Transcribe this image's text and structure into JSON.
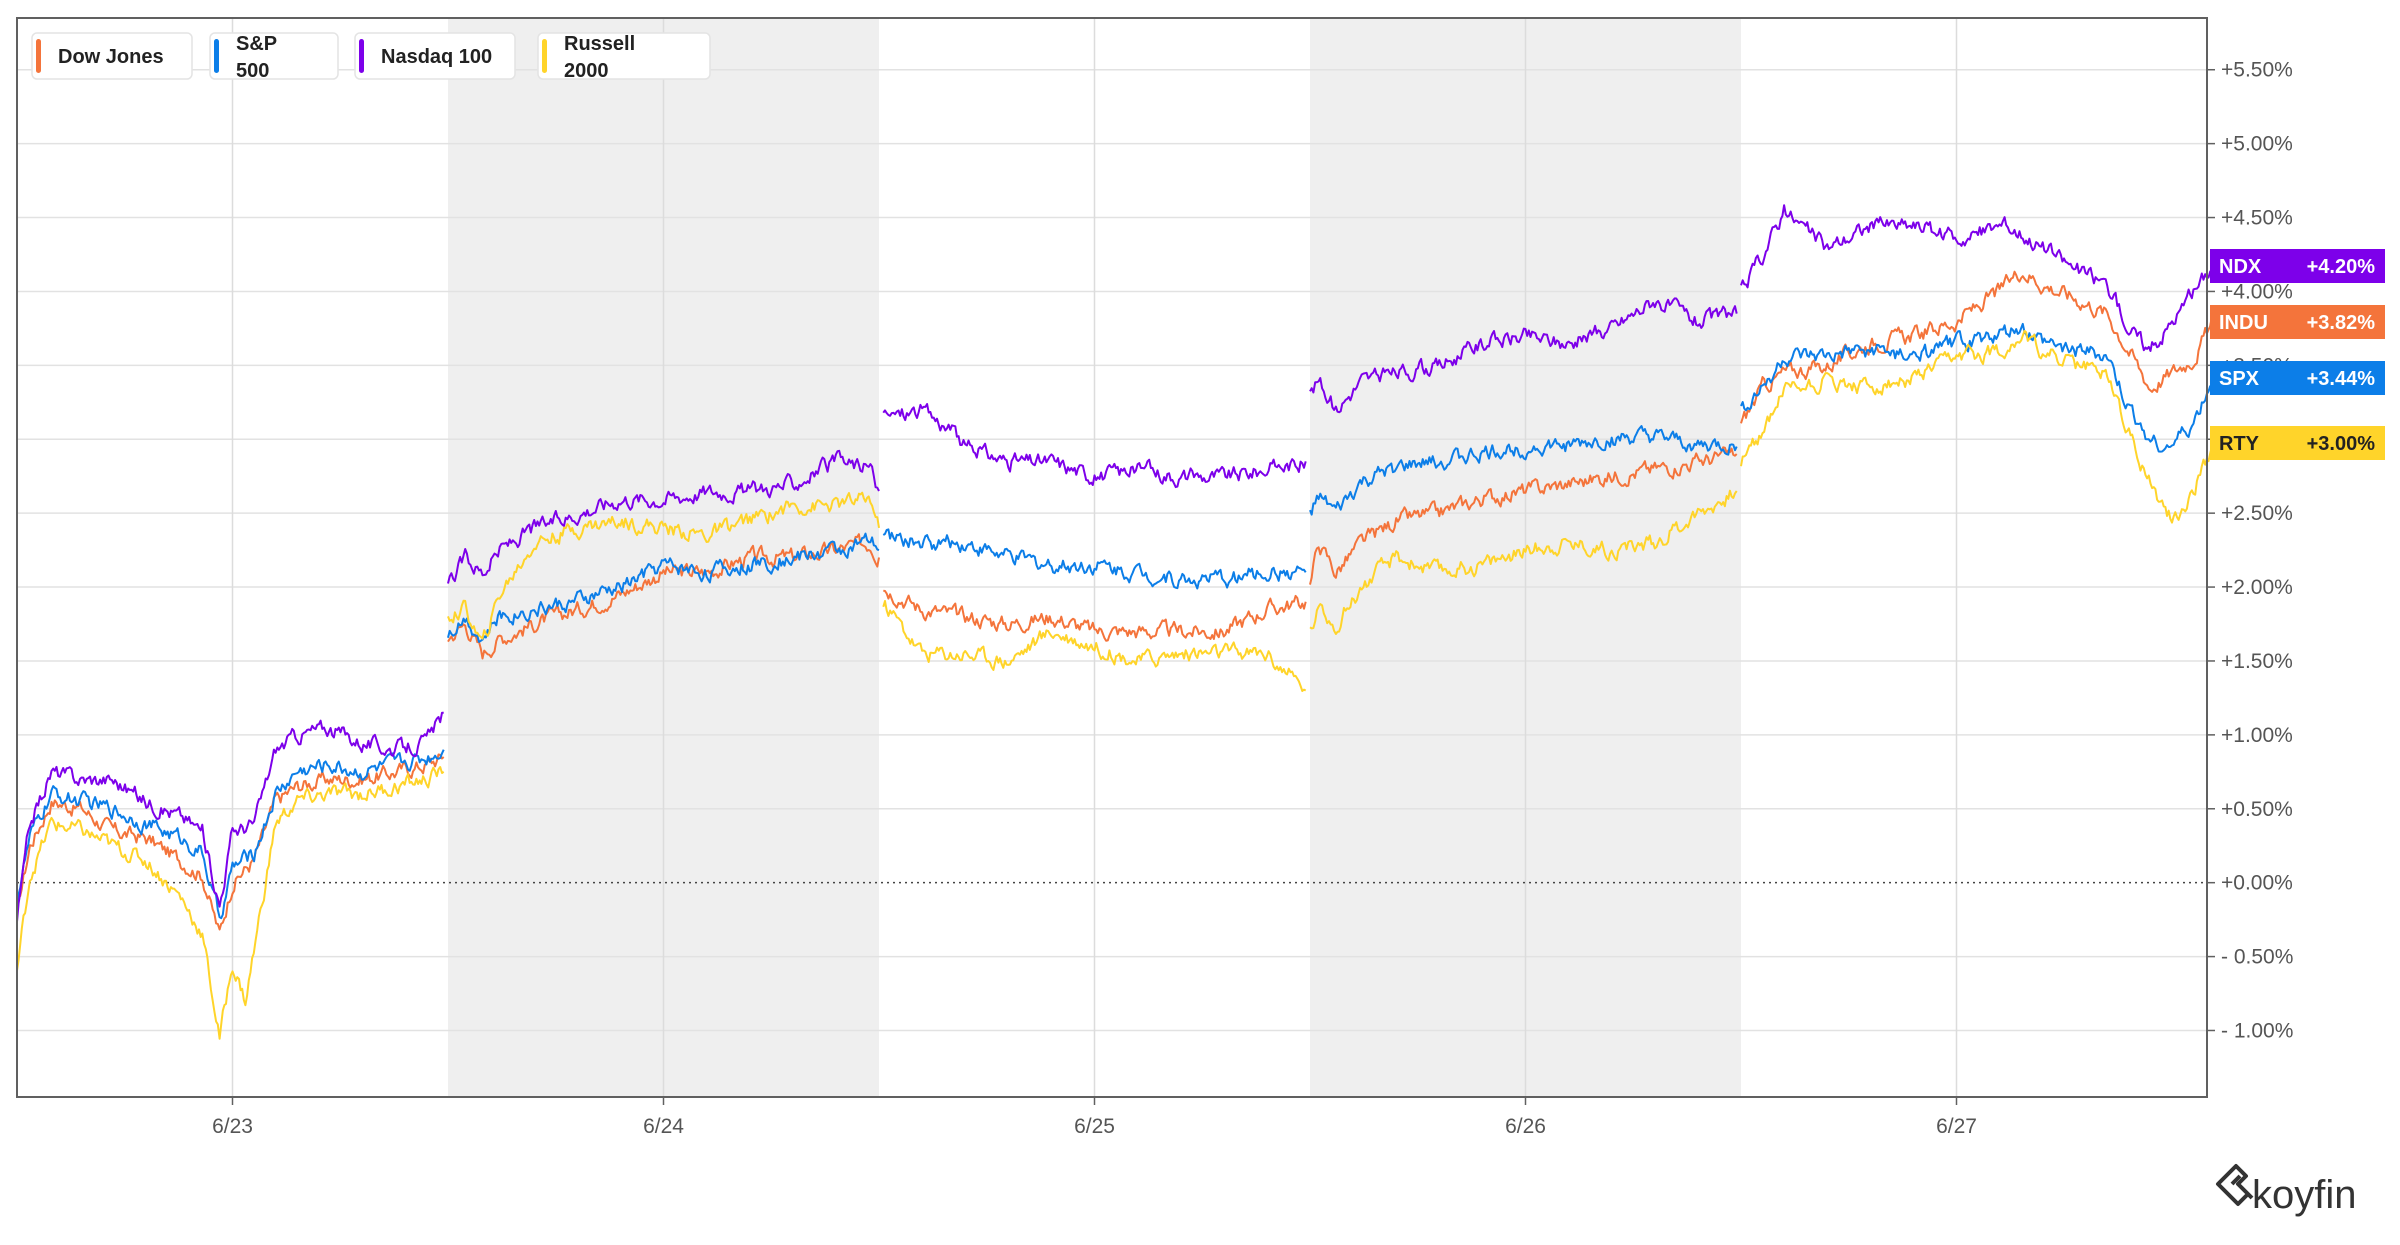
{
  "chart_data": {
    "type": "line",
    "title": "",
    "x_ticks": [
      "6/23",
      "6/24",
      "6/25",
      "6/26",
      "6/27"
    ],
    "y_ticks": [
      "+5.50%",
      "+5.00%",
      "+4.50%",
      "+4.00%",
      "+3.50%",
      "+3.00%",
      "+2.50%",
      "+2.00%",
      "+1.50%",
      "+1.00%",
      "+0.50%",
      "+0.00%",
      "- 0.50%",
      "- 1.00%"
    ],
    "y_tick_values": [
      5.5,
      5.0,
      4.5,
      4.0,
      3.5,
      3.0,
      2.5,
      2.0,
      1.5,
      1.0,
      0.5,
      0.0,
      -0.5,
      -1.0
    ],
    "ylim": [
      -1.45,
      5.85
    ],
    "xlim": [
      0,
      5.1
    ],
    "grid": true,
    "zero_line": "dotted",
    "shaded_days": [
      [
        1.0,
        2.0
      ],
      [
        3.0,
        4.0
      ]
    ],
    "legend_position": "top-left",
    "series": [
      {
        "name": "Dow Jones",
        "ticker": "INDU",
        "last_label": "+3.82%",
        "color": "#f4743b",
        "last": 3.82,
        "points": [
          [
            0.0,
            -0.2
          ],
          [
            0.03,
            0.25
          ],
          [
            0.08,
            0.55
          ],
          [
            0.15,
            0.5
          ],
          [
            0.22,
            0.35
          ],
          [
            0.3,
            0.3
          ],
          [
            0.38,
            0.15
          ],
          [
            0.43,
            0.05
          ],
          [
            0.47,
            -0.35
          ],
          [
            0.5,
            0.0
          ],
          [
            0.55,
            0.15
          ],
          [
            0.6,
            0.55
          ],
          [
            0.65,
            0.65
          ],
          [
            0.72,
            0.7
          ],
          [
            0.8,
            0.7
          ],
          [
            0.88,
            0.75
          ],
          [
            0.95,
            0.8
          ],
          [
            0.99,
            0.85
          ],
          [
            1.0,
            1.65
          ],
          [
            1.04,
            1.75
          ],
          [
            1.08,
            1.55
          ],
          [
            1.12,
            1.65
          ],
          [
            1.2,
            1.75
          ],
          [
            1.3,
            1.85
          ],
          [
            1.4,
            1.95
          ],
          [
            1.5,
            2.1
          ],
          [
            1.6,
            2.1
          ],
          [
            1.7,
            2.2
          ],
          [
            1.8,
            2.2
          ],
          [
            1.9,
            2.25
          ],
          [
            1.98,
            2.3
          ],
          [
            2.0,
            2.2
          ],
          [
            2.01,
            2.0
          ],
          [
            2.1,
            1.85
          ],
          [
            2.2,
            1.8
          ],
          [
            2.3,
            1.75
          ],
          [
            2.4,
            1.8
          ],
          [
            2.5,
            1.7
          ],
          [
            2.6,
            1.7
          ],
          [
            2.7,
            1.7
          ],
          [
            2.8,
            1.7
          ],
          [
            2.9,
            1.85
          ],
          [
            2.99,
            1.9
          ],
          [
            3.0,
            2.0
          ],
          [
            3.02,
            2.3
          ],
          [
            3.06,
            2.1
          ],
          [
            3.12,
            2.3
          ],
          [
            3.2,
            2.45
          ],
          [
            3.3,
            2.5
          ],
          [
            3.4,
            2.6
          ],
          [
            3.5,
            2.65
          ],
          [
            3.6,
            2.7
          ],
          [
            3.7,
            2.75
          ],
          [
            3.8,
            2.8
          ],
          [
            3.9,
            2.85
          ],
          [
            3.99,
            2.9
          ],
          [
            4.0,
            3.1
          ],
          [
            4.05,
            3.35
          ],
          [
            4.1,
            3.45
          ],
          [
            4.2,
            3.5
          ],
          [
            4.3,
            3.65
          ],
          [
            4.4,
            3.7
          ],
          [
            4.5,
            3.8
          ],
          [
            4.6,
            4.0
          ],
          [
            4.65,
            4.15
          ],
          [
            4.7,
            4.05
          ],
          [
            4.78,
            3.95
          ],
          [
            4.85,
            3.85
          ],
          [
            4.9,
            3.6
          ],
          [
            4.95,
            3.35
          ],
          [
            5.0,
            3.45
          ],
          [
            5.05,
            3.55
          ],
          [
            5.1,
            3.82
          ]
        ]
      },
      {
        "name": "S&P 500",
        "ticker": "SPX",
        "last_label": "+3.44%",
        "color": "#0c7ee8",
        "last": 3.44,
        "points": [
          [
            0.0,
            -0.1
          ],
          [
            0.03,
            0.3
          ],
          [
            0.08,
            0.6
          ],
          [
            0.15,
            0.55
          ],
          [
            0.22,
            0.5
          ],
          [
            0.3,
            0.4
          ],
          [
            0.38,
            0.3
          ],
          [
            0.43,
            0.2
          ],
          [
            0.47,
            -0.25
          ],
          [
            0.5,
            0.1
          ],
          [
            0.55,
            0.2
          ],
          [
            0.6,
            0.6
          ],
          [
            0.65,
            0.75
          ],
          [
            0.72,
            0.8
          ],
          [
            0.8,
            0.75
          ],
          [
            0.88,
            0.8
          ],
          [
            0.95,
            0.85
          ],
          [
            0.99,
            0.9
          ],
          [
            1.0,
            1.7
          ],
          [
            1.04,
            1.8
          ],
          [
            1.08,
            1.65
          ],
          [
            1.12,
            1.8
          ],
          [
            1.2,
            1.85
          ],
          [
            1.3,
            1.9
          ],
          [
            1.4,
            2.0
          ],
          [
            1.5,
            2.15
          ],
          [
            1.6,
            2.1
          ],
          [
            1.7,
            2.15
          ],
          [
            1.8,
            2.2
          ],
          [
            1.9,
            2.25
          ],
          [
            1.98,
            2.3
          ],
          [
            2.0,
            2.25
          ],
          [
            2.01,
            2.35
          ],
          [
            2.1,
            2.3
          ],
          [
            2.2,
            2.3
          ],
          [
            2.3,
            2.2
          ],
          [
            2.4,
            2.15
          ],
          [
            2.5,
            2.15
          ],
          [
            2.6,
            2.1
          ],
          [
            2.7,
            2.05
          ],
          [
            2.8,
            2.05
          ],
          [
            2.9,
            2.1
          ],
          [
            2.99,
            2.1
          ],
          [
            3.0,
            2.5
          ],
          [
            3.02,
            2.6
          ],
          [
            3.06,
            2.5
          ],
          [
            3.12,
            2.7
          ],
          [
            3.2,
            2.8
          ],
          [
            3.3,
            2.85
          ],
          [
            3.4,
            2.9
          ],
          [
            3.5,
            2.95
          ],
          [
            3.6,
            2.95
          ],
          [
            3.7,
            3.0
          ],
          [
            3.8,
            3.0
          ],
          [
            3.9,
            2.95
          ],
          [
            3.99,
            2.95
          ],
          [
            4.0,
            3.2
          ],
          [
            4.05,
            3.35
          ],
          [
            4.1,
            3.55
          ],
          [
            4.2,
            3.55
          ],
          [
            4.3,
            3.6
          ],
          [
            4.4,
            3.55
          ],
          [
            4.5,
            3.65
          ],
          [
            4.6,
            3.7
          ],
          [
            4.65,
            3.75
          ],
          [
            4.7,
            3.65
          ],
          [
            4.78,
            3.6
          ],
          [
            4.85,
            3.55
          ],
          [
            4.9,
            3.2
          ],
          [
            4.95,
            3.0
          ],
          [
            5.0,
            2.95
          ],
          [
            5.05,
            3.1
          ],
          [
            5.1,
            3.44
          ]
        ]
      },
      {
        "name": "Nasdaq 100",
        "ticker": "NDX",
        "last_label": "+4.20%",
        "color": "#7d00ea",
        "last": 4.2,
        "points": [
          [
            0.0,
            -0.25
          ],
          [
            0.03,
            0.4
          ],
          [
            0.08,
            0.75
          ],
          [
            0.15,
            0.7
          ],
          [
            0.22,
            0.7
          ],
          [
            0.3,
            0.55
          ],
          [
            0.38,
            0.45
          ],
          [
            0.43,
            0.35
          ],
          [
            0.47,
            -0.15
          ],
          [
            0.5,
            0.35
          ],
          [
            0.55,
            0.4
          ],
          [
            0.6,
            0.9
          ],
          [
            0.65,
            1.0
          ],
          [
            0.72,
            1.05
          ],
          [
            0.8,
            0.95
          ],
          [
            0.88,
            0.9
          ],
          [
            0.95,
            0.95
          ],
          [
            0.99,
            1.15
          ],
          [
            1.0,
            2.0
          ],
          [
            1.04,
            2.2
          ],
          [
            1.08,
            2.1
          ],
          [
            1.12,
            2.25
          ],
          [
            1.2,
            2.4
          ],
          [
            1.3,
            2.5
          ],
          [
            1.4,
            2.6
          ],
          [
            1.5,
            2.6
          ],
          [
            1.6,
            2.65
          ],
          [
            1.7,
            2.65
          ],
          [
            1.8,
            2.7
          ],
          [
            1.9,
            2.85
          ],
          [
            1.98,
            2.8
          ],
          [
            2.0,
            2.65
          ],
          [
            2.01,
            3.15
          ],
          [
            2.1,
            3.2
          ],
          [
            2.15,
            3.1
          ],
          [
            2.2,
            2.95
          ],
          [
            2.3,
            2.85
          ],
          [
            2.4,
            2.85
          ],
          [
            2.5,
            2.75
          ],
          [
            2.6,
            2.8
          ],
          [
            2.7,
            2.75
          ],
          [
            2.8,
            2.75
          ],
          [
            2.9,
            2.8
          ],
          [
            2.99,
            2.85
          ],
          [
            3.0,
            3.3
          ],
          [
            3.02,
            3.4
          ],
          [
            3.06,
            3.2
          ],
          [
            3.12,
            3.4
          ],
          [
            3.2,
            3.45
          ],
          [
            3.3,
            3.5
          ],
          [
            3.4,
            3.65
          ],
          [
            3.5,
            3.7
          ],
          [
            3.6,
            3.65
          ],
          [
            3.7,
            3.75
          ],
          [
            3.8,
            3.95
          ],
          [
            3.9,
            3.8
          ],
          [
            3.99,
            3.85
          ],
          [
            4.0,
            4.0
          ],
          [
            4.05,
            4.25
          ],
          [
            4.1,
            4.55
          ],
          [
            4.2,
            4.3
          ],
          [
            4.3,
            4.45
          ],
          [
            4.4,
            4.45
          ],
          [
            4.5,
            4.35
          ],
          [
            4.6,
            4.45
          ],
          [
            4.65,
            4.4
          ],
          [
            4.7,
            4.3
          ],
          [
            4.78,
            4.15
          ],
          [
            4.85,
            4.05
          ],
          [
            4.9,
            3.75
          ],
          [
            4.95,
            3.6
          ],
          [
            5.0,
            3.8
          ],
          [
            5.05,
            4.0
          ],
          [
            5.1,
            4.2
          ]
        ]
      },
      {
        "name": "Russell 2000",
        "ticker": "RTY",
        "last_label": "+3.00%",
        "color": "#ffd42a",
        "last": 3.0,
        "points": [
          [
            0.0,
            -0.6
          ],
          [
            0.03,
            0.05
          ],
          [
            0.08,
            0.4
          ],
          [
            0.15,
            0.35
          ],
          [
            0.22,
            0.25
          ],
          [
            0.3,
            0.15
          ],
          [
            0.38,
            -0.1
          ],
          [
            0.43,
            -0.35
          ],
          [
            0.47,
            -1.05
          ],
          [
            0.5,
            -0.55
          ],
          [
            0.53,
            -0.8
          ],
          [
            0.6,
            0.4
          ],
          [
            0.65,
            0.55
          ],
          [
            0.72,
            0.6
          ],
          [
            0.8,
            0.6
          ],
          [
            0.88,
            0.65
          ],
          [
            0.95,
            0.7
          ],
          [
            0.99,
            0.75
          ],
          [
            1.0,
            1.8
          ],
          [
            1.04,
            1.85
          ],
          [
            1.08,
            1.6
          ],
          [
            1.12,
            1.95
          ],
          [
            1.2,
            2.3
          ],
          [
            1.3,
            2.4
          ],
          [
            1.4,
            2.45
          ],
          [
            1.5,
            2.4
          ],
          [
            1.6,
            2.35
          ],
          [
            1.7,
            2.45
          ],
          [
            1.8,
            2.55
          ],
          [
            1.9,
            2.55
          ],
          [
            1.98,
            2.6
          ],
          [
            2.0,
            2.4
          ],
          [
            2.01,
            1.9
          ],
          [
            2.1,
            1.55
          ],
          [
            2.2,
            1.55
          ],
          [
            2.3,
            1.5
          ],
          [
            2.4,
            1.7
          ],
          [
            2.5,
            1.6
          ],
          [
            2.6,
            1.5
          ],
          [
            2.7,
            1.55
          ],
          [
            2.8,
            1.55
          ],
          [
            2.9,
            1.55
          ],
          [
            2.99,
            1.3
          ],
          [
            3.0,
            1.7
          ],
          [
            3.02,
            1.85
          ],
          [
            3.06,
            1.75
          ],
          [
            3.12,
            2.0
          ],
          [
            3.2,
            2.2
          ],
          [
            3.3,
            2.1
          ],
          [
            3.4,
            2.15
          ],
          [
            3.5,
            2.25
          ],
          [
            3.6,
            2.3
          ],
          [
            3.7,
            2.25
          ],
          [
            3.8,
            2.3
          ],
          [
            3.9,
            2.5
          ],
          [
            3.99,
            2.65
          ],
          [
            4.0,
            2.85
          ],
          [
            4.05,
            3.05
          ],
          [
            4.1,
            3.35
          ],
          [
            4.2,
            3.4
          ],
          [
            4.3,
            3.35
          ],
          [
            4.4,
            3.4
          ],
          [
            4.5,
            3.55
          ],
          [
            4.6,
            3.6
          ],
          [
            4.65,
            3.7
          ],
          [
            4.7,
            3.6
          ],
          [
            4.78,
            3.5
          ],
          [
            4.85,
            3.45
          ],
          [
            4.9,
            3.05
          ],
          [
            4.95,
            2.7
          ],
          [
            5.0,
            2.45
          ],
          [
            5.05,
            2.65
          ],
          [
            5.1,
            3.0
          ]
        ]
      }
    ],
    "legend_entries": [
      {
        "label": "Dow Jones",
        "color": "#f4743b"
      },
      {
        "label": "S&P 500",
        "color": "#0c7ee8"
      },
      {
        "label": "Nasdaq 100",
        "color": "#7d00ea"
      },
      {
        "label": "Russell 2000",
        "color": "#ffd42a"
      }
    ],
    "watermark": "koyfin"
  }
}
